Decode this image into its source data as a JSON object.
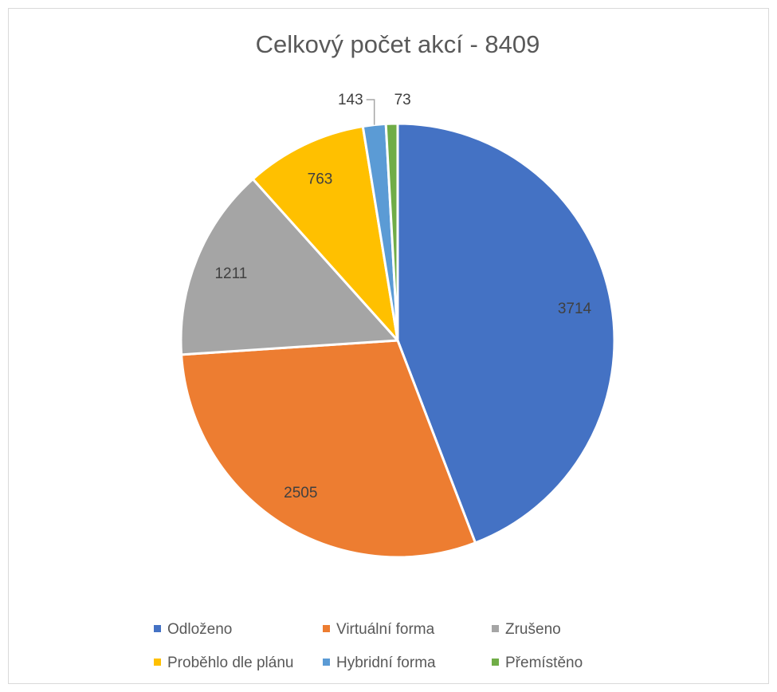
{
  "chart_data": {
    "type": "pie",
    "title": "Celkový počet akcí - 8409",
    "legend_position": "bottom",
    "slices": [
      {
        "label": "Odloženo",
        "value": 3714,
        "color": "#4472C4"
      },
      {
        "label": "Virtuální forma",
        "value": 2505,
        "color": "#ED7D31"
      },
      {
        "label": "Zrušeno",
        "value": 1211,
        "color": "#A5A5A5"
      },
      {
        "label": "Proběhlo dle plánu",
        "value": 763,
        "color": "#FFC000"
      },
      {
        "label": "Hybridní forma",
        "value": 143,
        "color": "#5B9BD5"
      },
      {
        "label": "Přemístěno",
        "value": 73,
        "color": "#70AD47"
      }
    ]
  }
}
